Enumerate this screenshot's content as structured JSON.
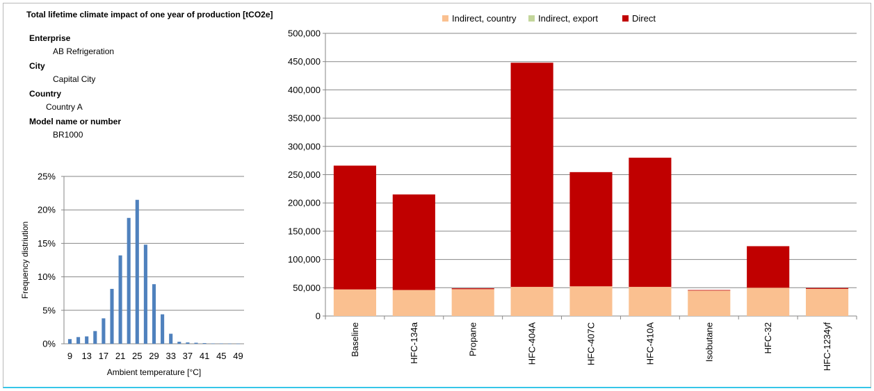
{
  "title": "Total lifetime climate impact of one year of production [tCO2e]",
  "info": [
    {
      "label": "Enterprise",
      "value": "AB Refrigeration"
    },
    {
      "label": "City",
      "value": "Capital City"
    },
    {
      "label": "Country",
      "value": "Country A"
    },
    {
      "label": "Model name or number",
      "value": "BR1000"
    }
  ],
  "colors": {
    "indirect_country": "#fac090",
    "indirect_export": "#c3d69b",
    "direct": "#c00000",
    "histogram": "#4f81bd",
    "grid": "#868686",
    "frame_accent": "#35c6e8"
  },
  "chart_data": [
    {
      "type": "bar",
      "stacked": true,
      "categories": [
        "Baseline",
        "HFC-134a",
        "Propane",
        "HFC-404A",
        "HFC-407C",
        "HFC-410A",
        "Isobutane",
        "HFC-32",
        "HFC-1234yf"
      ],
      "series": [
        {
          "name": "Indirect, country",
          "values": [
            47000,
            46000,
            47500,
            51500,
            52500,
            51500,
            45000,
            50000,
            48000
          ]
        },
        {
          "name": "Indirect, export",
          "values": [
            0,
            0,
            0,
            0,
            0,
            0,
            0,
            0,
            0
          ]
        },
        {
          "name": "Direct",
          "values": [
            219000,
            169000,
            1500,
            396500,
            202000,
            228500,
            1000,
            73500,
            1500
          ]
        }
      ],
      "ylim": [
        0,
        500000
      ],
      "yticks": [
        0,
        50000,
        100000,
        150000,
        200000,
        250000,
        300000,
        350000,
        400000,
        450000,
        500000
      ],
      "ytick_labels": [
        "0",
        "50,000",
        "100,000",
        "150,000",
        "200,000",
        "250,000",
        "300,000",
        "350,000",
        "400,000",
        "450,000",
        "500,000"
      ],
      "grid": true,
      "legend": "top"
    },
    {
      "type": "bar",
      "x": [
        9,
        11,
        13,
        15,
        17,
        19,
        21,
        23,
        25,
        27,
        29,
        31,
        33,
        35,
        37,
        39,
        41,
        43,
        45,
        47,
        49
      ],
      "values": [
        0.007,
        0.01,
        0.011,
        0.019,
        0.038,
        0.082,
        0.132,
        0.188,
        0.215,
        0.148,
        0.089,
        0.044,
        0.015,
        0.003,
        0.002,
        0.0015,
        0.001,
        0.0005,
        0.0005,
        0.0003,
        0.0002
      ],
      "xtick_labels": [
        "9",
        "13",
        "17",
        "21",
        "25",
        "29",
        "33",
        "37",
        "41",
        "45",
        "49"
      ],
      "ytick_labels": [
        "0%",
        "5%",
        "10%",
        "15%",
        "20%",
        "25%"
      ],
      "ylim": [
        0,
        0.25
      ],
      "xlabel": "Ambient temperature [°C]",
      "ylabel": "Frequency distriution",
      "grid": true
    }
  ]
}
